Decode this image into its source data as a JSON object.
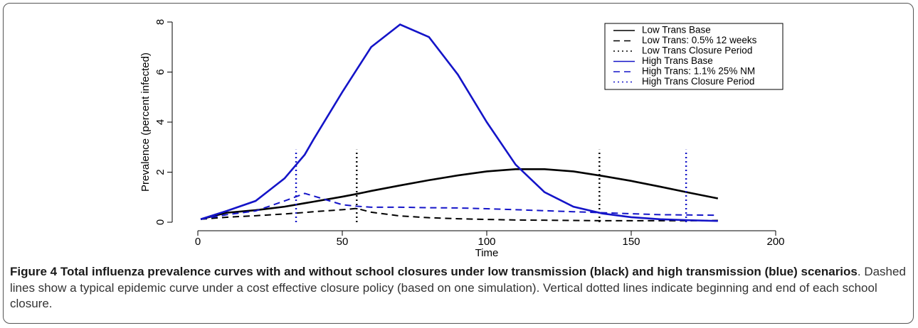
{
  "chart_data": {
    "type": "line",
    "xlabel": "Time",
    "ylabel": "Prevalence (percent infected)",
    "x": [
      1,
      10,
      20,
      30,
      37,
      40,
      50,
      55,
      60,
      70,
      80,
      90,
      100,
      110,
      120,
      130,
      140,
      150,
      160,
      170,
      180
    ],
    "series": [
      {
        "name": "Low Trans Base",
        "color": "#000000",
        "dash": "solid",
        "values": [
          0.12,
          0.38,
          0.48,
          0.62,
          0.76,
          0.82,
          1.02,
          1.13,
          1.25,
          1.47,
          1.68,
          1.87,
          2.03,
          2.12,
          2.12,
          2.03,
          1.85,
          1.65,
          1.42,
          1.18,
          0.95
        ]
      },
      {
        "name": "Low Trans: 0.5% 12 weeks",
        "color": "#000000",
        "dash": "dashed",
        "values": [
          0.12,
          0.2,
          0.26,
          0.33,
          0.39,
          0.42,
          0.5,
          0.55,
          0.4,
          0.25,
          0.18,
          0.14,
          0.11,
          0.09,
          0.08,
          0.07,
          0.06,
          0.06,
          0.06,
          0.06,
          0.07
        ]
      },
      {
        "name": "Low Trans Closure Period",
        "color": "#000000",
        "dash": "dotted",
        "vlines": [
          55,
          139
        ],
        "vline_top": 2.9
      },
      {
        "name": "High Trans Base",
        "color": "#1414c8",
        "dash": "solid",
        "values": [
          0.12,
          0.45,
          0.85,
          1.75,
          2.7,
          3.3,
          5.2,
          6.1,
          7.0,
          7.9,
          7.4,
          5.9,
          4.0,
          2.3,
          1.2,
          0.62,
          0.35,
          0.2,
          0.12,
          0.08,
          0.05
        ]
      },
      {
        "name": "High Trans: 1.1% 25% NM",
        "color": "#1414c8",
        "dash": "dashed",
        "values": [
          0.12,
          0.3,
          0.45,
          0.85,
          1.15,
          1.05,
          0.7,
          0.64,
          0.6,
          0.6,
          0.58,
          0.57,
          0.54,
          0.5,
          0.46,
          0.42,
          0.38,
          0.34,
          0.3,
          0.29,
          0.28
        ]
      },
      {
        "name": "High Trans Closure Period",
        "color": "#1414c8",
        "dash": "dotted",
        "vlines": [
          34,
          169
        ],
        "vline_top": 2.9
      }
    ],
    "xlim": [
      0,
      200
    ],
    "xticks": [
      0,
      50,
      100,
      150,
      200
    ],
    "ylim": [
      0,
      8
    ],
    "yticks": [
      0,
      2,
      4,
      6,
      8
    ],
    "legend": "upper right"
  },
  "caption": {
    "bold": "Figure 4 Total influenza prevalence curves with and without school closures under low transmission (black) and high transmission (blue) scenarios",
    "text": ". Dashed lines show a typical epidemic curve under a cost effective closure policy (based on one simulation). Vertical dotted lines indicate beginning and end of each school closure."
  }
}
